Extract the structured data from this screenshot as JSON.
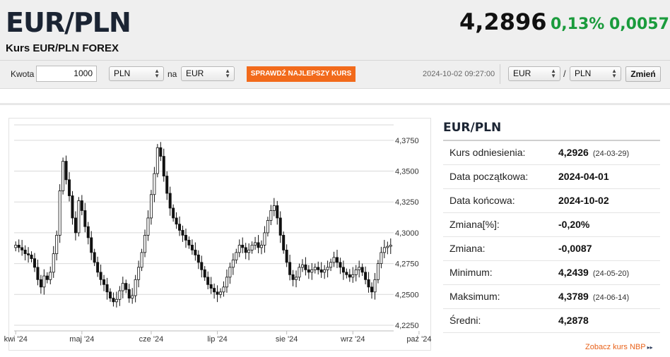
{
  "header": {
    "pair": "EUR/PLN",
    "subtitle": "Kurs EUR/PLN FOREX",
    "price": "4,2896",
    "change_pct": "0,13%",
    "change_abs": "0,0057",
    "timestamp": "2024-10-02 09:27:00"
  },
  "converter": {
    "amount_label": "Kwota",
    "amount_value": "1000",
    "from_currency": "PLN",
    "na_label": "na",
    "to_currency": "EUR",
    "cta_label": "SPRAWDŹ NAJLEPSZY KURS"
  },
  "pair_switch": {
    "base": "EUR",
    "separator": "/",
    "quote": "PLN",
    "button_label": "Zmień"
  },
  "stats": {
    "title": "EUR/PLN",
    "rows": [
      {
        "label": "Kurs odniesienia:",
        "value": "4,2926",
        "date": "(24-03-29)"
      },
      {
        "label": "Data początkowa:",
        "value": "2024-04-01",
        "date": ""
      },
      {
        "label": "Data końcowa:",
        "value": "2024-10-02",
        "date": ""
      },
      {
        "label": "Zmiana[%]:",
        "value": "-0,20%",
        "date": ""
      },
      {
        "label": "Zmiana:",
        "value": "-0,0087",
        "date": ""
      },
      {
        "label": "Minimum:",
        "value": "4,2439",
        "date": "(24-05-20)"
      },
      {
        "label": "Maksimum:",
        "value": "4,3789",
        "date": "(24-06-14)"
      },
      {
        "label": "Średni:",
        "value": "4,2878",
        "date": ""
      }
    ],
    "nbp_link": "Zobacz kurs NBP",
    "nbp_arrow": "▸▸"
  },
  "colors": {
    "accent_orange": "#f26a1b",
    "positive_green": "#1a9b3c",
    "candle": "#111111"
  },
  "chart_data": {
    "type": "candlestick",
    "ylim": [
      4.225,
      4.3875
    ],
    "y_ticks": [
      "4,2250",
      "4,2500",
      "4,2750",
      "4,3000",
      "4,3250",
      "4,3500",
      "4,3750"
    ],
    "x_ticks": [
      "kwi '24",
      "maj '24",
      "cze '24",
      "lip '24",
      "sie '24",
      "wrz '24",
      "paź '24"
    ],
    "x_tick_index": [
      0,
      21,
      43,
      64,
      86,
      107,
      128
    ],
    "close": [
      4.29,
      4.288,
      4.286,
      4.283,
      4.282,
      4.279,
      4.272,
      4.262,
      4.256,
      4.265,
      4.262,
      4.268,
      4.283,
      4.298,
      4.334,
      4.358,
      4.343,
      4.33,
      4.312,
      4.3,
      4.326,
      4.318,
      4.305,
      4.296,
      4.284,
      4.276,
      4.268,
      4.262,
      4.258,
      4.252,
      4.247,
      4.244,
      4.246,
      4.253,
      4.259,
      4.254,
      4.247,
      4.249,
      4.262,
      4.272,
      4.284,
      4.298,
      4.312,
      4.331,
      4.348,
      4.369,
      4.362,
      4.346,
      4.332,
      4.32,
      4.312,
      4.307,
      4.302,
      4.298,
      4.294,
      4.29,
      4.286,
      4.282,
      4.276,
      4.27,
      4.264,
      4.258,
      4.255,
      4.252,
      4.25,
      4.252,
      4.256,
      4.264,
      4.272,
      4.278,
      4.284,
      4.29,
      4.288,
      4.284,
      4.286,
      4.29,
      4.292,
      4.288,
      4.29,
      4.3,
      4.31,
      4.318,
      4.322,
      4.312,
      4.298,
      4.286,
      4.276,
      4.266,
      4.262,
      4.264,
      4.272,
      4.274,
      4.27,
      4.268,
      4.27,
      4.272,
      4.27,
      4.268,
      4.27,
      4.272,
      4.276,
      4.28,
      4.276,
      4.272,
      4.268,
      4.266,
      4.264,
      4.266,
      4.27,
      4.272,
      4.268,
      4.262,
      4.256,
      4.252,
      4.262,
      4.275,
      4.284,
      4.288,
      4.289,
      4.29
    ]
  }
}
